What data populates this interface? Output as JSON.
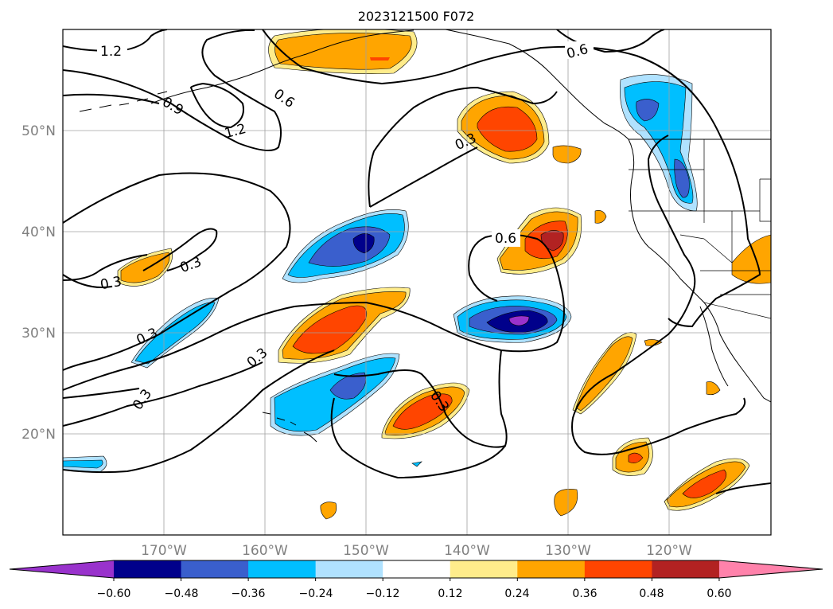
{
  "title": "2023121500 F072",
  "map": {
    "projection": "PlateCarree",
    "lon_range": [
      -180,
      -110
    ],
    "lat_range": [
      10,
      60
    ],
    "gridlines": true,
    "lat_labels": [
      "20°N",
      "30°N",
      "40°N",
      "50°N"
    ],
    "lon_labels": [
      "170°W",
      "160°W",
      "150°W",
      "140°W",
      "130°W",
      "120°W"
    ]
  },
  "contour_labels": [
    "1.2",
    "0.9",
    "1.2",
    "0.6",
    "0.6",
    "0.3",
    "0.3",
    "0.3",
    "0.3",
    "0.3",
    "0.6",
    "0.3",
    "0.3"
  ],
  "colorbar": {
    "tick_labels": [
      "−0.60",
      "−0.48",
      "−0.36",
      "−0.24",
      "−0.12",
      "0.12",
      "0.24",
      "0.36",
      "0.48",
      "0.60"
    ],
    "colors": [
      "#9932cc",
      "#00008b",
      "#3a5fcd",
      "#00bfff",
      "#b0e2ff",
      "#ffffff",
      "#ffec8b",
      "#ffa500",
      "#ff4500",
      "#b22222",
      "#ff82ab"
    ],
    "extend": "both"
  },
  "colors": {
    "coast": "#000000",
    "contour": "#000000",
    "grid": "#a0a0a0",
    "tick_text": "#808080"
  }
}
